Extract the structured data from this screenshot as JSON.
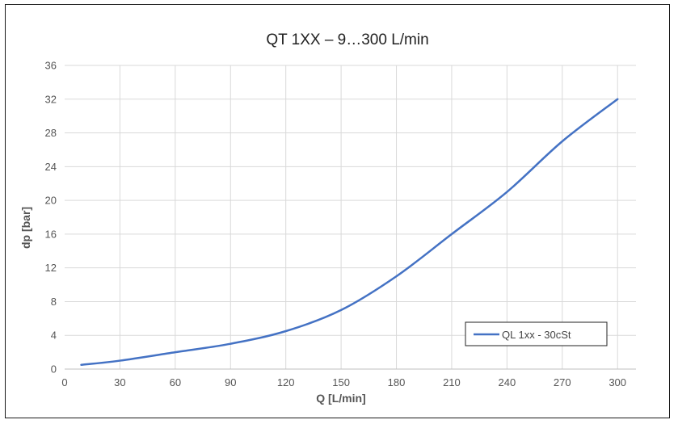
{
  "chart_data": {
    "type": "line",
    "title": "QT 1XX – 9…300 L/min",
    "xlabel": "Q [L/min]",
    "ylabel": "dp [bar]",
    "xlim": [
      0,
      310
    ],
    "ylim": [
      0,
      36
    ],
    "x_ticks": [
      0,
      30,
      60,
      90,
      120,
      150,
      180,
      210,
      240,
      270,
      300
    ],
    "y_ticks": [
      0,
      4,
      8,
      12,
      16,
      20,
      24,
      28,
      32,
      36
    ],
    "grid": true,
    "legend_position": "bottom-right",
    "series": [
      {
        "name": "QL 1xx - 30cSt",
        "color": "#4472c4",
        "x": [
          9,
          30,
          60,
          90,
          120,
          150,
          180,
          210,
          240,
          270,
          300
        ],
        "y": [
          0.5,
          1.0,
          2.0,
          3.0,
          4.5,
          7.0,
          11.0,
          16.0,
          21.0,
          27.0,
          32.0
        ]
      }
    ]
  }
}
